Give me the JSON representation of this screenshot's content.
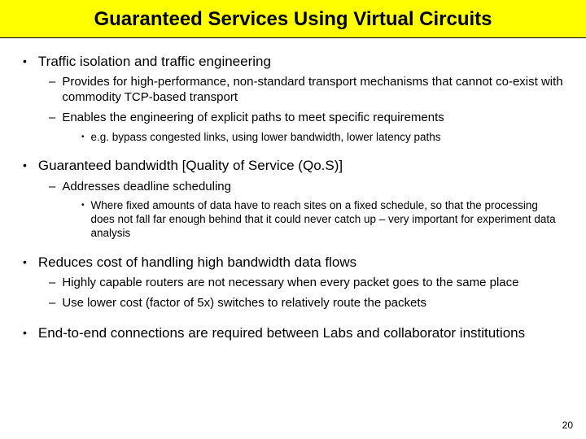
{
  "title": "Guaranteed Services Using Virtual Circuits",
  "colors": {
    "title_bg": "#ffff00",
    "title_fg": "#000000",
    "body_bg": "#ffffff",
    "text": "#000000",
    "rule": "#000000"
  },
  "typography": {
    "title_fontsize": 24,
    "level1_fontsize": 17,
    "level2_fontsize": 15,
    "level3_fontsize": 13.5,
    "font_family": "Arial"
  },
  "bullets": [
    {
      "text": "Traffic isolation and traffic engineering",
      "sub": [
        {
          "text": "Provides for high-performance, non-standard transport mechanisms that cannot co-exist with commodity TCP-based transport",
          "sub": []
        },
        {
          "text": "Enables the engineering of explicit paths to meet specific requirements",
          "sub": [
            {
              "text": "e.g. bypass congested links, using lower bandwidth, lower latency paths"
            }
          ]
        }
      ]
    },
    {
      "text": "Guaranteed bandwidth [Quality of Service (Qo.S)]",
      "sub": [
        {
          "text": "Addresses deadline scheduling",
          "sub": [
            {
              "text": "Where fixed amounts of data have to reach sites on a fixed schedule, so that the processing does not fall far enough behind that it could never catch up – very important for experiment data analysis"
            }
          ]
        }
      ]
    },
    {
      "text": "Reduces cost of handling high bandwidth data flows",
      "sub": [
        {
          "text": "Highly capable routers are not necessary when every packet goes to the same place",
          "sub": []
        },
        {
          "text": "Use lower cost (factor of 5x) switches to relatively route the packets",
          "sub": []
        }
      ]
    },
    {
      "text": "End-to-end connections are required between Labs and collaborator institutions",
      "sub": []
    }
  ],
  "page_number": "20"
}
